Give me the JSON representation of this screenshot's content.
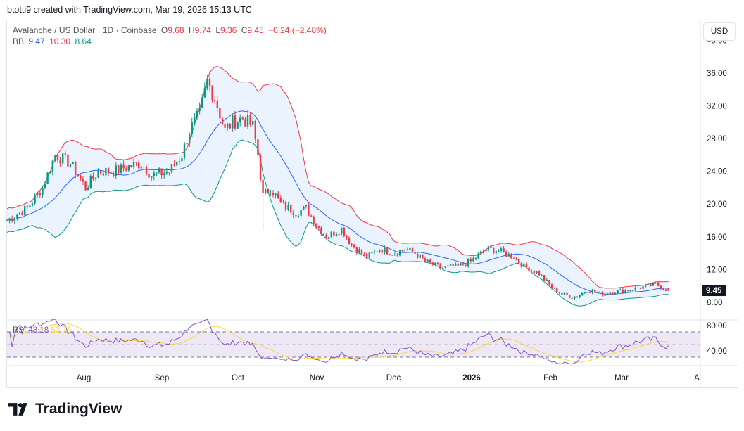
{
  "credit": "btotti9 created with TradingView.com, Mar 19, 2026 15:13 UTC",
  "legend": {
    "symbol": "Avalanche / US Dollar · 1D · Coinbase",
    "o_label": "O",
    "o": "9.68",
    "h_label": "H",
    "h": "9.74",
    "l_label": "L",
    "l": "9.36",
    "c_label": "C",
    "c": "9.45",
    "change": "−0.24 (−2.48%)",
    "bb_label": "BB",
    "bb_basis": "9.47",
    "bb_upper": "10.30",
    "bb_lower": "8.64"
  },
  "currency": "USD",
  "rsi": {
    "label": "RSI",
    "value": "48.18",
    "ma": "52.75"
  },
  "logo_text": "TradingView",
  "colors": {
    "up": "#089981",
    "down": "#f23645",
    "bb_basis": "#2962ff",
    "bb_upper": "#f23645",
    "bb_lower": "#089981",
    "bb_fill": "#e3effd",
    "rsi": "#7e57c2",
    "rsi_ma": "#fdd835",
    "rsi_band": "#ede7f6"
  },
  "chart_data": [
    {
      "type": "candlestick",
      "title": "Avalanche / US Dollar · 1D · Coinbase",
      "ylabel": "USD",
      "ylim": [
        6,
        40
      ],
      "price_ticks": [
        "40.00",
        "36.00",
        "32.00",
        "28.00",
        "24.00",
        "20.00",
        "16.00",
        "12.00",
        "8.00"
      ],
      "last_price": "9.45",
      "x_ticks": [
        "Aug",
        "Sep",
        "Oct",
        "Nov",
        "Dec",
        "2026",
        "Feb",
        "Mar",
        "A"
      ],
      "approx_close": [
        [
          "2025-07-01",
          18
        ],
        [
          "2025-07-09",
          19.5
        ],
        [
          "2025-07-15",
          22
        ],
        [
          "2025-07-20",
          26
        ],
        [
          "2025-07-26",
          25
        ],
        [
          "2025-08-01",
          22
        ],
        [
          "2025-08-06",
          24
        ],
        [
          "2025-08-12",
          24
        ],
        [
          "2025-08-17",
          24.5
        ],
        [
          "2025-08-23",
          25
        ],
        [
          "2025-08-27",
          23.5
        ],
        [
          "2025-09-03",
          24
        ],
        [
          "2025-09-08",
          26
        ],
        [
          "2025-09-11",
          29
        ],
        [
          "2025-09-15",
          31
        ],
        [
          "2025-09-18",
          35
        ],
        [
          "2025-09-21",
          33
        ],
        [
          "2025-09-25",
          29
        ],
        [
          "2025-09-28",
          30
        ],
        [
          "2025-10-02",
          30.5
        ],
        [
          "2025-10-06",
          29.5
        ],
        [
          "2025-10-08",
          26
        ],
        [
          "2025-10-10",
          21
        ],
        [
          "2025-10-13",
          22
        ],
        [
          "2025-10-17",
          20
        ],
        [
          "2025-10-23",
          19
        ],
        [
          "2025-10-27",
          19.5
        ],
        [
          "2025-10-31",
          17.5
        ],
        [
          "2025-11-04",
          16
        ],
        [
          "2025-11-10",
          17
        ],
        [
          "2025-11-14",
          15
        ],
        [
          "2025-11-20",
          13.5
        ],
        [
          "2025-11-25",
          14.5
        ],
        [
          "2025-12-01",
          14
        ],
        [
          "2025-12-05",
          14.5
        ],
        [
          "2025-12-09",
          14
        ],
        [
          "2025-12-13",
          13
        ],
        [
          "2025-12-19",
          12.2
        ],
        [
          "2025-12-26",
          12.4
        ],
        [
          "2025-12-31",
          13
        ],
        [
          "2026-01-06",
          14.5
        ],
        [
          "2026-01-11",
          14.3
        ],
        [
          "2026-01-17",
          13.5
        ],
        [
          "2026-01-21",
          12.4
        ],
        [
          "2026-01-27",
          11.5
        ],
        [
          "2026-02-01",
          9.8
        ],
        [
          "2026-02-05",
          9
        ],
        [
          "2026-02-10",
          8.6
        ],
        [
          "2026-02-15",
          9.5
        ],
        [
          "2026-02-21",
          9
        ],
        [
          "2026-02-25",
          9.3
        ],
        [
          "2026-03-02",
          9.4
        ],
        [
          "2026-03-08",
          9.8
        ],
        [
          "2026-03-14",
          10.2
        ],
        [
          "2026-03-19",
          9.45
        ]
      ],
      "indicator": "Bollinger Bands",
      "bb_last": {
        "basis": 9.47,
        "upper": 10.3,
        "lower": 8.64
      }
    },
    {
      "type": "line",
      "title": "RSI",
      "ylim": [
        20,
        90
      ],
      "ticks": [
        "80.00",
        "40.00"
      ],
      "bands": [
        70,
        50,
        30
      ],
      "series": [
        {
          "name": "RSI",
          "last": 48.18
        },
        {
          "name": "RSI MA",
          "last": 52.75
        }
      ]
    }
  ]
}
